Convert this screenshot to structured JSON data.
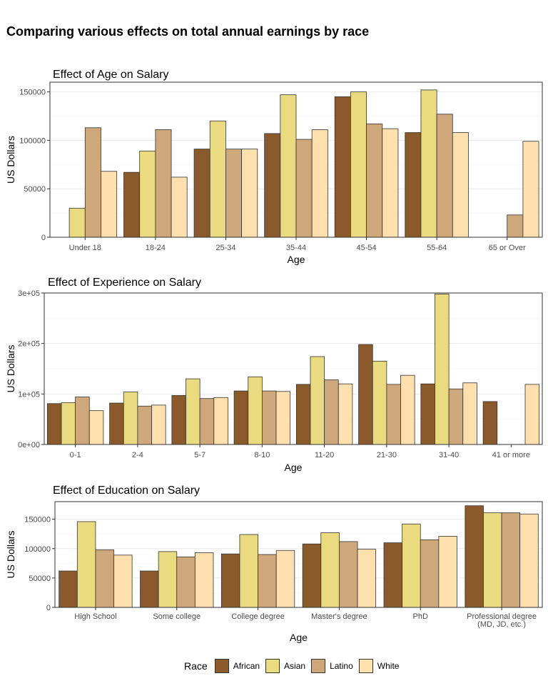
{
  "figure": {
    "title": "Comparing various effects on total annual earnings by race"
  },
  "colors": {
    "African": "#8b5a2b",
    "Asian": "#ebdb80",
    "Latino": "#cea87b",
    "White": "#fedfae"
  },
  "legend": {
    "title": "Race",
    "items": [
      "African",
      "Asian",
      "Latino",
      "White"
    ]
  },
  "chart_data": [
    {
      "type": "bar",
      "title": "Effect of Age on Salary",
      "xlabel": "Age",
      "ylabel": "US Dollars",
      "ylim": [
        0,
        160000
      ],
      "yticks": [
        0,
        50000,
        100000,
        150000
      ],
      "ytick_labels": [
        "0",
        "50000",
        "100000",
        "150000"
      ],
      "categories": [
        "Under 18",
        "18-24",
        "25-34",
        "35-44",
        "45-54",
        "55-64",
        "65 or Over"
      ],
      "series": [
        {
          "name": "African",
          "values": [
            null,
            67000,
            91000,
            107000,
            145000,
            108000,
            null
          ]
        },
        {
          "name": "Asian",
          "values": [
            30000,
            89000,
            120000,
            147000,
            150000,
            152000,
            null
          ]
        },
        {
          "name": "Latino",
          "values": [
            113000,
            111000,
            91000,
            101000,
            117000,
            127000,
            23000
          ]
        },
        {
          "name": "White",
          "values": [
            68000,
            62000,
            91000,
            111000,
            112000,
            108000,
            99000
          ]
        }
      ]
    },
    {
      "type": "bar",
      "title": "Effect of Experience on Salary",
      "xlabel": "Age",
      "ylabel": "US Dollars",
      "ylim": [
        0,
        300000
      ],
      "yticks": [
        0,
        100000,
        200000,
        300000
      ],
      "ytick_labels": [
        "0e+00",
        "1e+05",
        "2e+05",
        "3e+05"
      ],
      "categories": [
        "0-1",
        "2-4",
        "5-7",
        "8-10",
        "11-20",
        "21-30",
        "31-40",
        "41 or more"
      ],
      "series": [
        {
          "name": "African",
          "values": [
            81000,
            82000,
            97000,
            106000,
            119000,
            198000,
            120000,
            85000
          ]
        },
        {
          "name": "Asian",
          "values": [
            83000,
            104000,
            130000,
            134000,
            174000,
            165000,
            298000,
            null
          ]
        },
        {
          "name": "Latino",
          "values": [
            94000,
            76000,
            91000,
            106000,
            128000,
            119000,
            110000,
            null
          ]
        },
        {
          "name": "White",
          "values": [
            67000,
            78000,
            93000,
            105000,
            120000,
            137000,
            122000,
            119000
          ]
        }
      ]
    },
    {
      "type": "bar",
      "title": "Effect of Education on Salary",
      "xlabel": "Age",
      "ylabel": "US Dollars",
      "ylim": [
        0,
        180000
      ],
      "yticks": [
        0,
        50000,
        100000,
        150000
      ],
      "ytick_labels": [
        "0",
        "50000",
        "100000",
        "150000"
      ],
      "categories": [
        "High School",
        "Some college",
        "College degree",
        "Master's degree",
        "PhD",
        "Professional degree\n(MD, JD, etc.)"
      ],
      "series": [
        {
          "name": "African",
          "values": [
            62000,
            62000,
            91000,
            108000,
            110000,
            173000
          ]
        },
        {
          "name": "Asian",
          "values": [
            146000,
            95000,
            124000,
            127000,
            142000,
            161000
          ]
        },
        {
          "name": "Latino",
          "values": [
            98000,
            86000,
            90000,
            112000,
            115000,
            161000
          ]
        },
        {
          "name": "White",
          "values": [
            89000,
            93000,
            97000,
            99000,
            121000,
            159000
          ]
        }
      ]
    }
  ]
}
